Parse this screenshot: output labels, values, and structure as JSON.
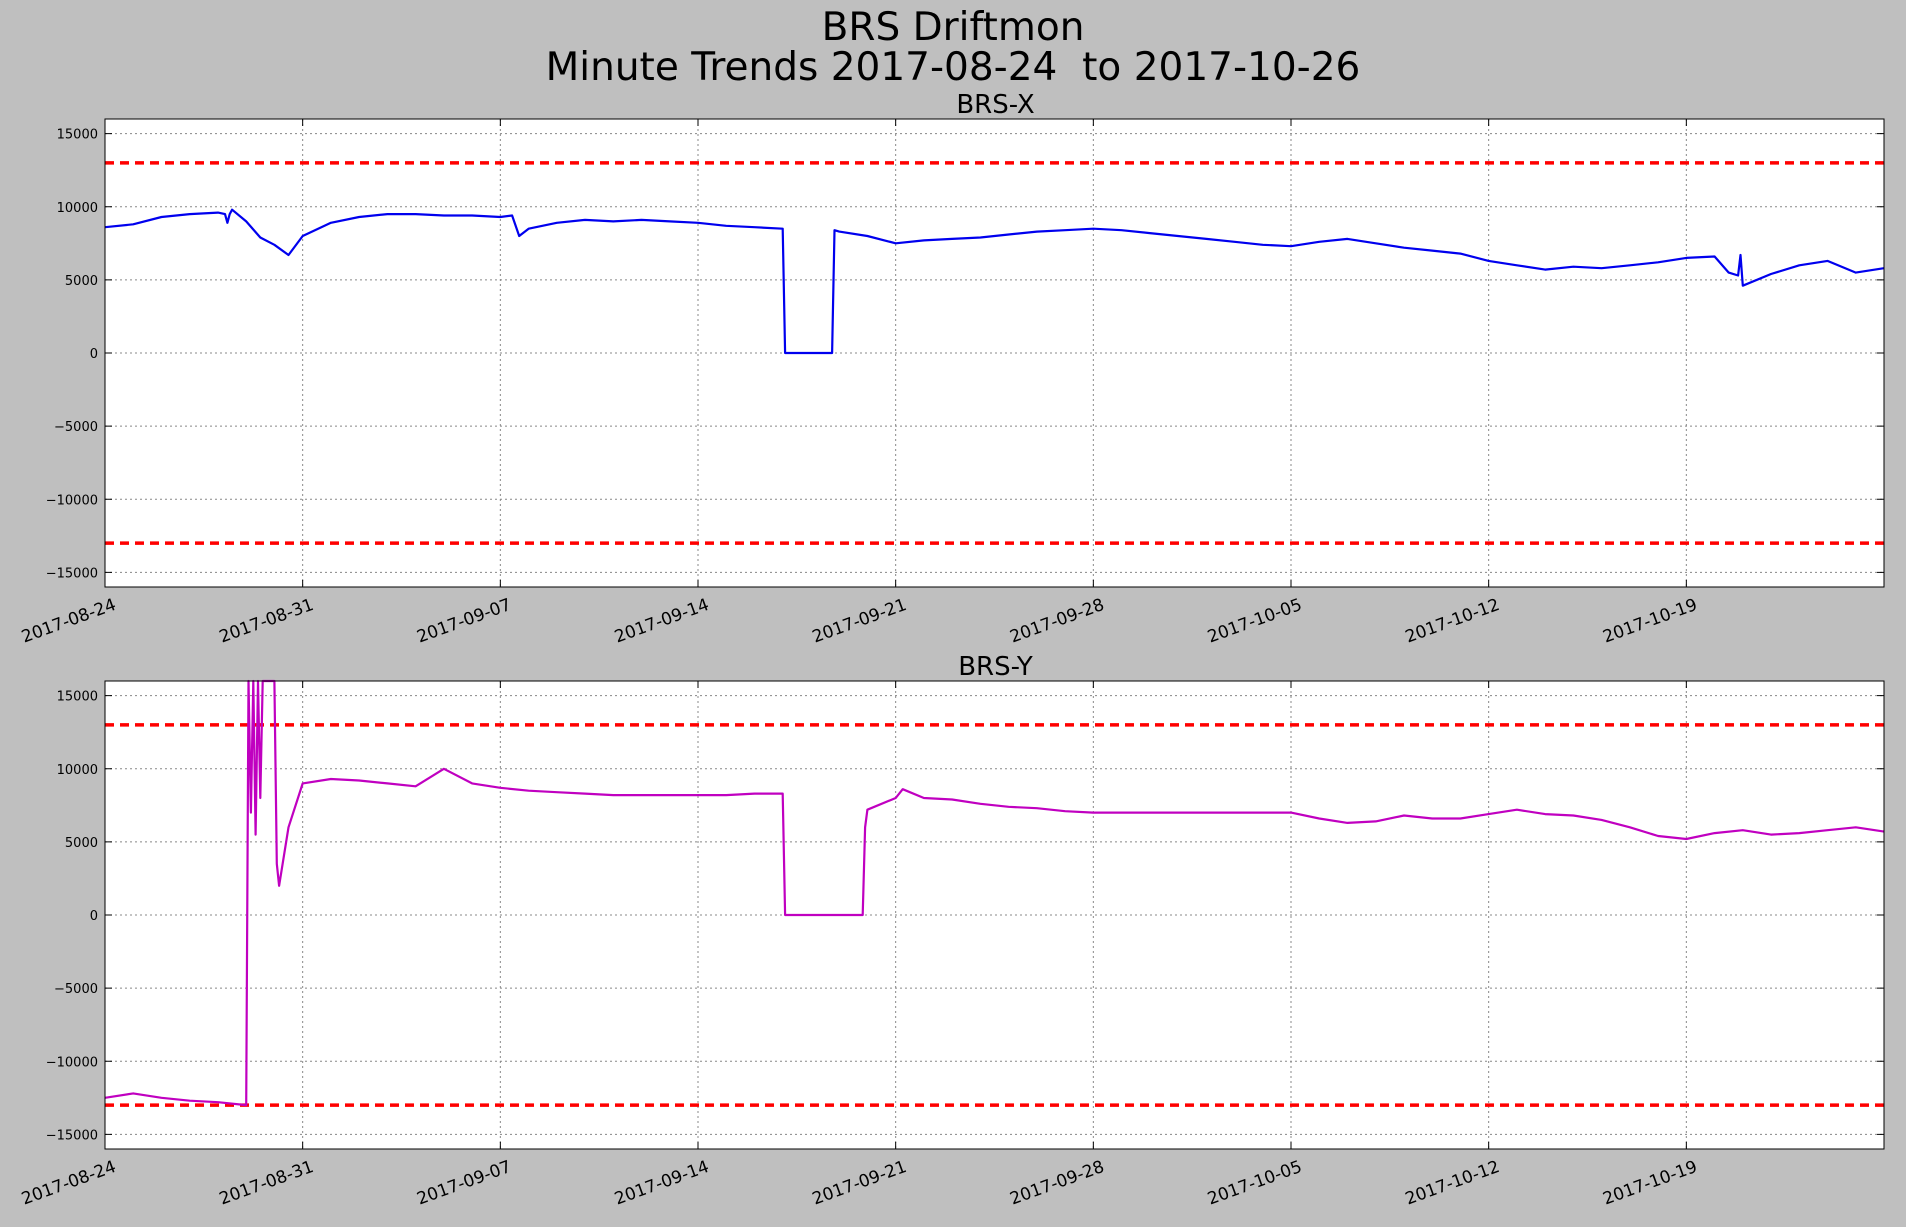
{
  "figure": {
    "title_line1": "BRS Driftmon",
    "title_line2": "Minute Trends 2017-08-24  to 2017-10-26",
    "background": "#bfbfbf"
  },
  "chart_data": [
    {
      "type": "line",
      "title": "BRS-X",
      "xlabel": "",
      "ylabel": "",
      "x_is_date": true,
      "xlim": [
        "2017-08-24",
        "2017-10-26"
      ],
      "ylim": [
        -16000,
        16000
      ],
      "yticks": [
        15000,
        10000,
        5000,
        0,
        -5000,
        -10000,
        -15000
      ],
      "ytick_labels": [
        "15000",
        "10000",
        "5000",
        "0",
        "−5000",
        "−10000",
        "−15000"
      ],
      "xticks": [
        "2017-08-24",
        "2017-08-31",
        "2017-09-07",
        "2017-09-14",
        "2017-09-21",
        "2017-09-28",
        "2017-10-05",
        "2017-10-12",
        "2017-10-19"
      ],
      "grid": true,
      "thresholds": [
        {
          "y": 13000,
          "color": "#ff0000",
          "style": "dashed"
        },
        {
          "y": -13000,
          "color": "#ff0000",
          "style": "dashed"
        }
      ],
      "series": [
        {
          "color": "#0000ee",
          "points": [
            [
              "2017-08-24",
              8600
            ],
            [
              "2017-08-25",
              8800
            ],
            [
              "2017-08-26",
              9300
            ],
            [
              "2017-08-27",
              9500
            ],
            [
              "2017-08-28",
              9600
            ],
            [
              "2017-08-28 06:00",
              9500
            ],
            [
              "2017-08-28 08:00",
              8900
            ],
            [
              "2017-08-28 10:00",
              9500
            ],
            [
              "2017-08-28 12:00",
              9800
            ],
            [
              "2017-08-29",
              9000
            ],
            [
              "2017-08-29 12:00",
              7900
            ],
            [
              "2017-08-30",
              7400
            ],
            [
              "2017-08-30 12:00",
              6700
            ],
            [
              "2017-08-31",
              8000
            ],
            [
              "2017-09-01",
              8900
            ],
            [
              "2017-09-02",
              9300
            ],
            [
              "2017-09-03",
              9500
            ],
            [
              "2017-09-04",
              9500
            ],
            [
              "2017-09-05",
              9400
            ],
            [
              "2017-09-06",
              9400
            ],
            [
              "2017-09-07",
              9300
            ],
            [
              "2017-09-07 10:00",
              9400
            ],
            [
              "2017-09-07 16:00",
              8000
            ],
            [
              "2017-09-08",
              8500
            ],
            [
              "2017-09-09",
              8900
            ],
            [
              "2017-09-10",
              9100
            ],
            [
              "2017-09-11",
              9000
            ],
            [
              "2017-09-12",
              9100
            ],
            [
              "2017-09-13",
              9000
            ],
            [
              "2017-09-14",
              8900
            ],
            [
              "2017-09-15",
              8700
            ],
            [
              "2017-09-16",
              8600
            ],
            [
              "2017-09-17",
              8500
            ],
            [
              "2017-09-17 02:00",
              0
            ],
            [
              "2017-09-18 18:00",
              0
            ],
            [
              "2017-09-18 20:00",
              8400
            ],
            [
              "2017-09-19",
              8300
            ],
            [
              "2017-09-20",
              8000
            ],
            [
              "2017-09-21",
              7500
            ],
            [
              "2017-09-22",
              7700
            ],
            [
              "2017-09-23",
              7800
            ],
            [
              "2017-09-24",
              7900
            ],
            [
              "2017-09-25",
              8100
            ],
            [
              "2017-09-26",
              8300
            ],
            [
              "2017-09-27",
              8400
            ],
            [
              "2017-09-28",
              8500
            ],
            [
              "2017-09-29",
              8400
            ],
            [
              "2017-09-30",
              8200
            ],
            [
              "2017-10-01",
              8000
            ],
            [
              "2017-10-02",
              7800
            ],
            [
              "2017-10-03",
              7600
            ],
            [
              "2017-10-04",
              7400
            ],
            [
              "2017-10-05",
              7300
            ],
            [
              "2017-10-06",
              7600
            ],
            [
              "2017-10-07",
              7800
            ],
            [
              "2017-10-08",
              7500
            ],
            [
              "2017-10-09",
              7200
            ],
            [
              "2017-10-10",
              7000
            ],
            [
              "2017-10-11",
              6800
            ],
            [
              "2017-10-12",
              6300
            ],
            [
              "2017-10-13",
              6000
            ],
            [
              "2017-10-14",
              5700
            ],
            [
              "2017-10-15",
              5900
            ],
            [
              "2017-10-16",
              5800
            ],
            [
              "2017-10-17",
              6000
            ],
            [
              "2017-10-18",
              6200
            ],
            [
              "2017-10-19",
              6500
            ],
            [
              "2017-10-20",
              6600
            ],
            [
              "2017-10-20 12:00",
              5500
            ],
            [
              "2017-10-20 20:00",
              5300
            ],
            [
              "2017-10-20 22:00",
              6700
            ],
            [
              "2017-10-21",
              4600
            ],
            [
              "2017-10-22",
              5400
            ],
            [
              "2017-10-23",
              6000
            ],
            [
              "2017-10-24",
              6300
            ],
            [
              "2017-10-25",
              5500
            ],
            [
              "2017-10-26",
              5800
            ]
          ]
        }
      ]
    },
    {
      "type": "line",
      "title": "BRS-Y",
      "xlabel": "",
      "ylabel": "",
      "x_is_date": true,
      "xlim": [
        "2017-08-24",
        "2017-10-26"
      ],
      "ylim": [
        -16000,
        16000
      ],
      "yticks": [
        15000,
        10000,
        5000,
        0,
        -5000,
        -10000,
        -15000
      ],
      "ytick_labels": [
        "15000",
        "10000",
        "5000",
        "0",
        "−5000",
        "−10000",
        "−15000"
      ],
      "xticks": [
        "2017-08-24",
        "2017-08-31",
        "2017-09-07",
        "2017-09-14",
        "2017-09-21",
        "2017-09-28",
        "2017-10-05",
        "2017-10-12",
        "2017-10-19"
      ],
      "grid": true,
      "thresholds": [
        {
          "y": 13000,
          "color": "#ff0000",
          "style": "dashed"
        },
        {
          "y": -13000,
          "color": "#ff0000",
          "style": "dashed"
        }
      ],
      "series": [
        {
          "color": "#c000c0",
          "points": [
            [
              "2017-08-24",
              -12500
            ],
            [
              "2017-08-25",
              -12200
            ],
            [
              "2017-08-26",
              -12500
            ],
            [
              "2017-08-27",
              -12700
            ],
            [
              "2017-08-28",
              -12800
            ],
            [
              "2017-08-29",
              -13000
            ],
            [
              "2017-08-29 02:00",
              16000
            ],
            [
              "2017-08-29 04:00",
              7000
            ],
            [
              "2017-08-29 06:00",
              16000
            ],
            [
              "2017-08-29 08:00",
              5500
            ],
            [
              "2017-08-29 10:00",
              16000
            ],
            [
              "2017-08-29 12:00",
              8000
            ],
            [
              "2017-08-29 14:00",
              16000
            ],
            [
              "2017-08-29 18:00",
              16000
            ],
            [
              "2017-08-30",
              16000
            ],
            [
              "2017-08-30 02:00",
              3500
            ],
            [
              "2017-08-30 04:00",
              2000
            ],
            [
              "2017-08-30 12:00",
              6000
            ],
            [
              "2017-08-31",
              9000
            ],
            [
              "2017-09-01",
              9300
            ],
            [
              "2017-09-02",
              9200
            ],
            [
              "2017-09-03",
              9000
            ],
            [
              "2017-09-04",
              8800
            ],
            [
              "2017-09-05",
              10000
            ],
            [
              "2017-09-06",
              9000
            ],
            [
              "2017-09-07",
              8700
            ],
            [
              "2017-09-08",
              8500
            ],
            [
              "2017-09-09",
              8400
            ],
            [
              "2017-09-10",
              8300
            ],
            [
              "2017-09-11",
              8200
            ],
            [
              "2017-09-12",
              8200
            ],
            [
              "2017-09-13",
              8200
            ],
            [
              "2017-09-14",
              8200
            ],
            [
              "2017-09-15",
              8200
            ],
            [
              "2017-09-16",
              8300
            ],
            [
              "2017-09-17",
              8300
            ],
            [
              "2017-09-17 02:00",
              0
            ],
            [
              "2017-09-19 20:00",
              0
            ],
            [
              "2017-09-19 22:00",
              6000
            ],
            [
              "2017-09-20",
              7200
            ],
            [
              "2017-09-21",
              8000
            ],
            [
              "2017-09-21 06:00",
              8600
            ],
            [
              "2017-09-22",
              8000
            ],
            [
              "2017-09-23",
              7900
            ],
            [
              "2017-09-24",
              7600
            ],
            [
              "2017-09-25",
              7400
            ],
            [
              "2017-09-26",
              7300
            ],
            [
              "2017-09-27",
              7100
            ],
            [
              "2017-09-28",
              7000
            ],
            [
              "2017-09-29",
              7000
            ],
            [
              "2017-09-30",
              7000
            ],
            [
              "2017-10-01",
              7000
            ],
            [
              "2017-10-02",
              7000
            ],
            [
              "2017-10-03",
              7000
            ],
            [
              "2017-10-04",
              7000
            ],
            [
              "2017-10-05",
              7000
            ],
            [
              "2017-10-06",
              6600
            ],
            [
              "2017-10-07",
              6300
            ],
            [
              "2017-10-08",
              6400
            ],
            [
              "2017-10-09",
              6800
            ],
            [
              "2017-10-10",
              6600
            ],
            [
              "2017-10-11",
              6600
            ],
            [
              "2017-10-12",
              6900
            ],
            [
              "2017-10-13",
              7200
            ],
            [
              "2017-10-14",
              6900
            ],
            [
              "2017-10-15",
              6800
            ],
            [
              "2017-10-16",
              6500
            ],
            [
              "2017-10-17",
              6000
            ],
            [
              "2017-10-18",
              5400
            ],
            [
              "2017-10-19",
              5200
            ],
            [
              "2017-10-20",
              5600
            ],
            [
              "2017-10-21",
              5800
            ],
            [
              "2017-10-22",
              5500
            ],
            [
              "2017-10-23",
              5600
            ],
            [
              "2017-10-24",
              5800
            ],
            [
              "2017-10-25",
              6000
            ],
            [
              "2017-10-26",
              5700
            ]
          ]
        }
      ]
    }
  ]
}
